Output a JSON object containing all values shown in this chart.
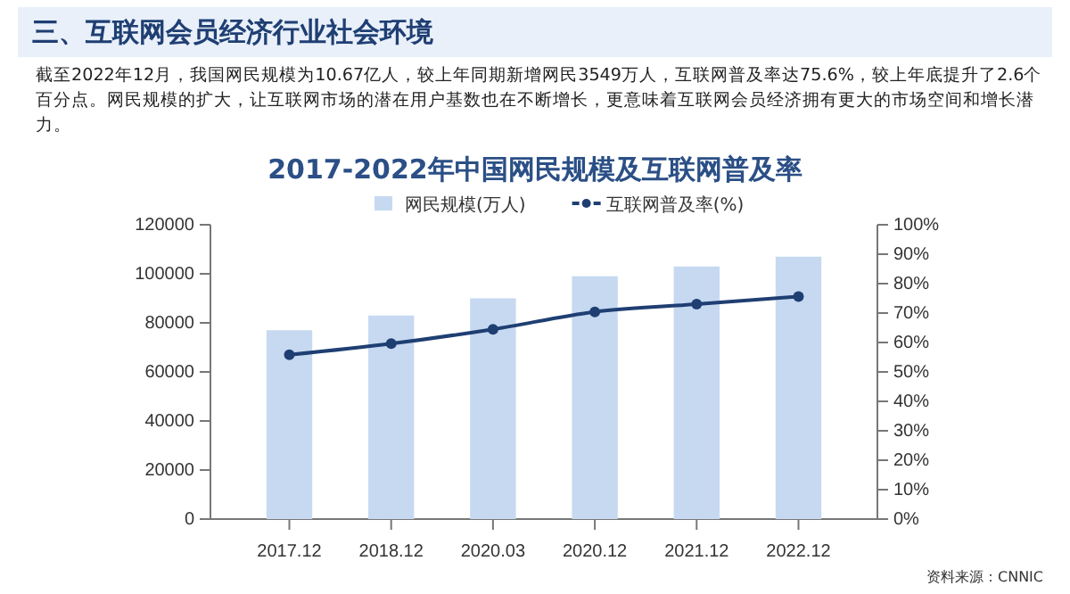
{
  "chart_data": {
    "type": "bar",
    "title": "2017-2022年中国网民规模及互联网普及率",
    "annotations": [
      "三、互联网会员经济行业社会环境",
      "截至2022年12月，我国网民规模为10.67亿人，较上年同期新增网民3549万人，互联网普及率达75.6%，较上年底提升了2.6个百分点。网民规模的扩大，让互联网市场的潜在用户基数也在不断增长，更意味着互联网会员经济拥有更大的市场空间和增长潜力。",
      "资料来源：CNNIC"
    ],
    "categories": [
      "2017.12",
      "2018.12",
      "2020.03",
      "2020.12",
      "2021.12",
      "2022.12"
    ],
    "series": [
      {
        "name": "网民规模(万人)",
        "color": "#c6d9f1",
        "values": [
          77000,
          83000,
          90000,
          99000,
          103000,
          107000
        ]
      },
      {
        "name": "互联网普及率(%)",
        "type": "line",
        "axis": "y2",
        "color": "#1f3f73",
        "marker": "circle",
        "values": [
          55.8,
          59.6,
          64.5,
          70.4,
          73.0,
          75.6
        ]
      }
    ],
    "ylim": [
      0,
      120000
    ],
    "yticks": [
      0,
      20000,
      40000,
      60000,
      80000,
      100000,
      120000
    ],
    "y2lim": [
      0,
      100
    ],
    "y2ticks": [
      {
        "value": 0,
        "label": "0%"
      },
      {
        "value": 10,
        "label": "10%"
      },
      {
        "value": 20,
        "label": "20%"
      },
      {
        "value": 30,
        "label": "30%"
      },
      {
        "value": 40,
        "label": "40%"
      },
      {
        "value": 50,
        "label": "50%"
      },
      {
        "value": 60,
        "label": "60%"
      },
      {
        "value": 70,
        "label": "70%"
      },
      {
        "value": 80,
        "label": "80%"
      },
      {
        "value": 90,
        "label": "90%"
      },
      {
        "value": 100,
        "label": "100%"
      }
    ],
    "legend": "top",
    "grid": false
  }
}
